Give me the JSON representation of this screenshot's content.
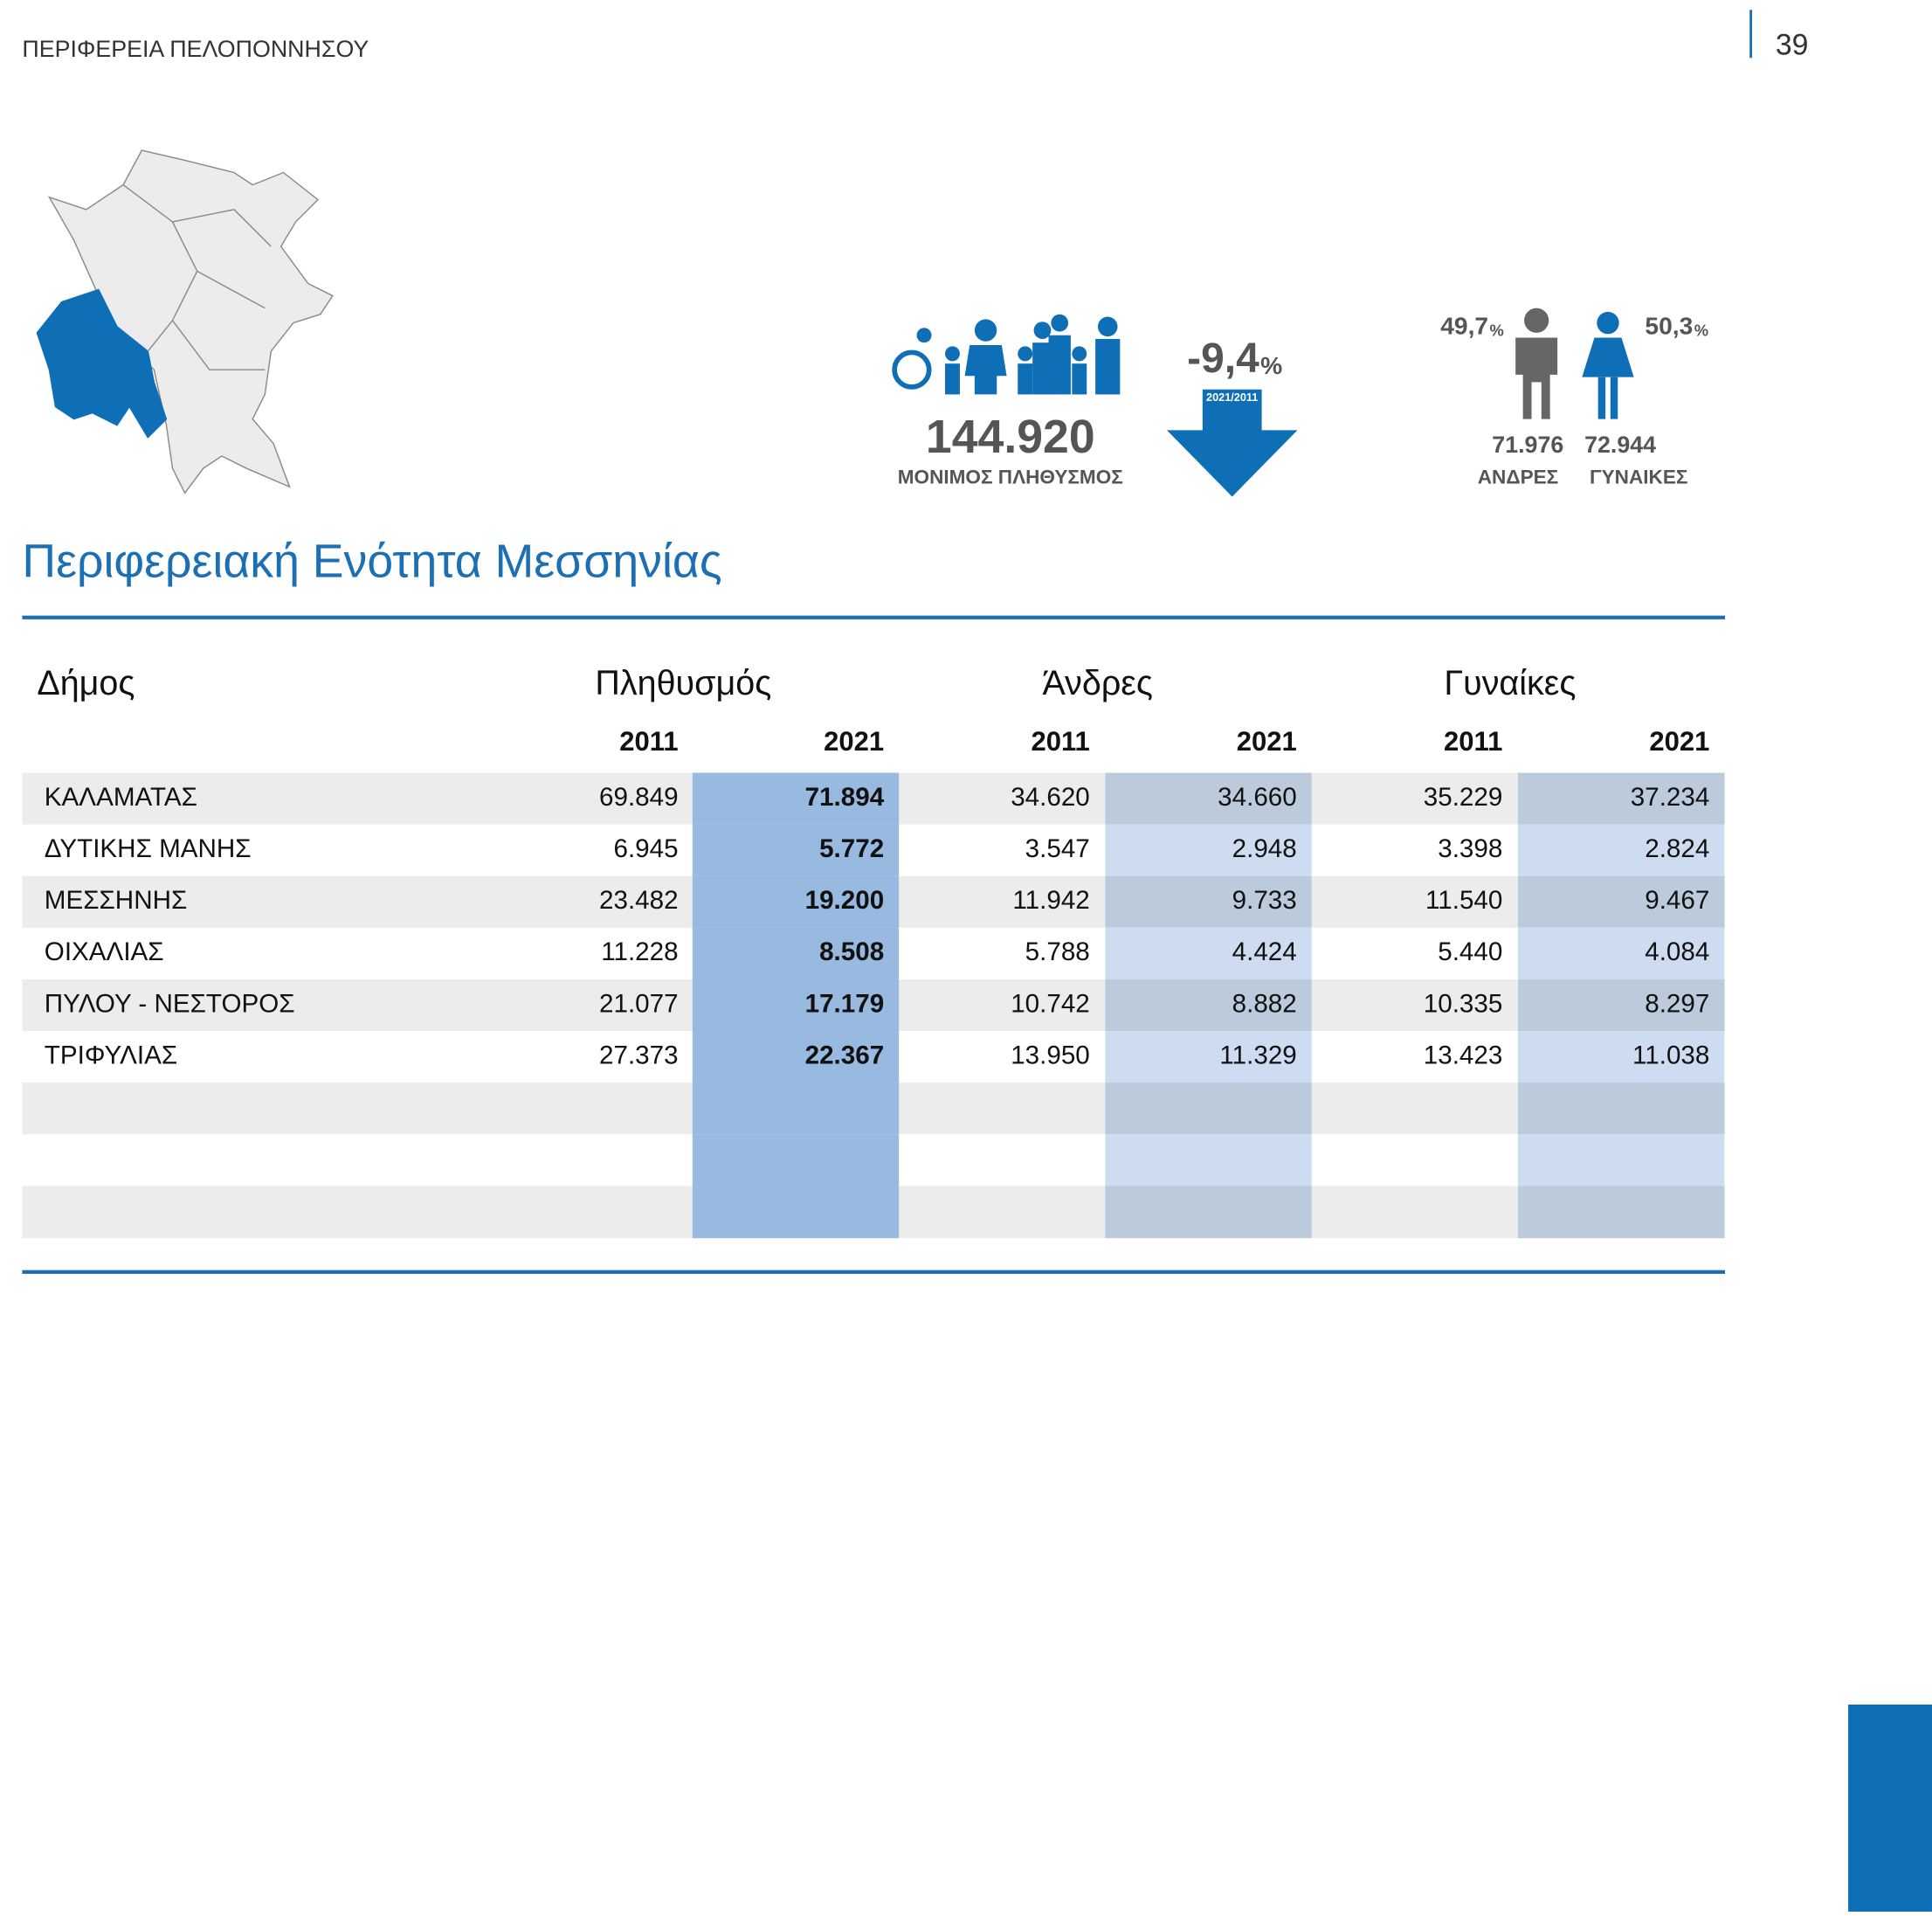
{
  "header": {
    "region": "ΠΕΡΙΦΕΡΕΙΑ ΠΕΛΟΠΟΝΝΗΣΟΥ",
    "page": "39"
  },
  "stats": {
    "population": "144.920",
    "population_label": "ΜΟΝΙΜΟΣ ΠΛΗΘΥΣΜΟΣ",
    "change": "-9,4",
    "pct_unit": "%",
    "change_period": "2021/2011",
    "men_pct": "49,7",
    "women_pct": "50,3",
    "men": "71.976",
    "men_label": "ΑΝΔΡΕΣ",
    "women": "72.944",
    "women_label": "ΓΥΝΑΙΚΕΣ"
  },
  "title": "Περιφερειακή Ενότητα Μεσσηνίας",
  "table": {
    "name_header": "Δήμος",
    "groups": [
      "Πληθυσμός",
      "Άνδρες",
      "Γυναίκες"
    ],
    "years": [
      "2011",
      "2021",
      "2011",
      "2021",
      "2011",
      "2021"
    ],
    "rows": [
      [
        "ΚΑΛΑΜΑΤΑΣ",
        "69.849",
        "71.894",
        "34.620",
        "34.660",
        "35.229",
        "37.234"
      ],
      [
        "ΔΥΤΙΚΗΣ ΜΑΝΗΣ",
        "6.945",
        "5.772",
        "3.547",
        "2.948",
        "3.398",
        "2.824"
      ],
      [
        "ΜΕΣΣΗΝΗΣ",
        "23.482",
        "19.200",
        "11.942",
        "9.733",
        "11.540",
        "9.467"
      ],
      [
        "ΟΙΧΑΛΙΑΣ",
        "11.228",
        "8.508",
        "5.788",
        "4.424",
        "5.440",
        "4.084"
      ],
      [
        "ΠΥΛΟΥ - ΝΕΣΤΟΡΟΣ",
        "21.077",
        "17.179",
        "10.742",
        "8.882",
        "10.335",
        "8.297"
      ],
      [
        "ΤΡΙΦΥΛΙΑΣ",
        "27.373",
        "22.367",
        "13.950",
        "11.329",
        "13.423",
        "11.038"
      ]
    ]
  }
}
